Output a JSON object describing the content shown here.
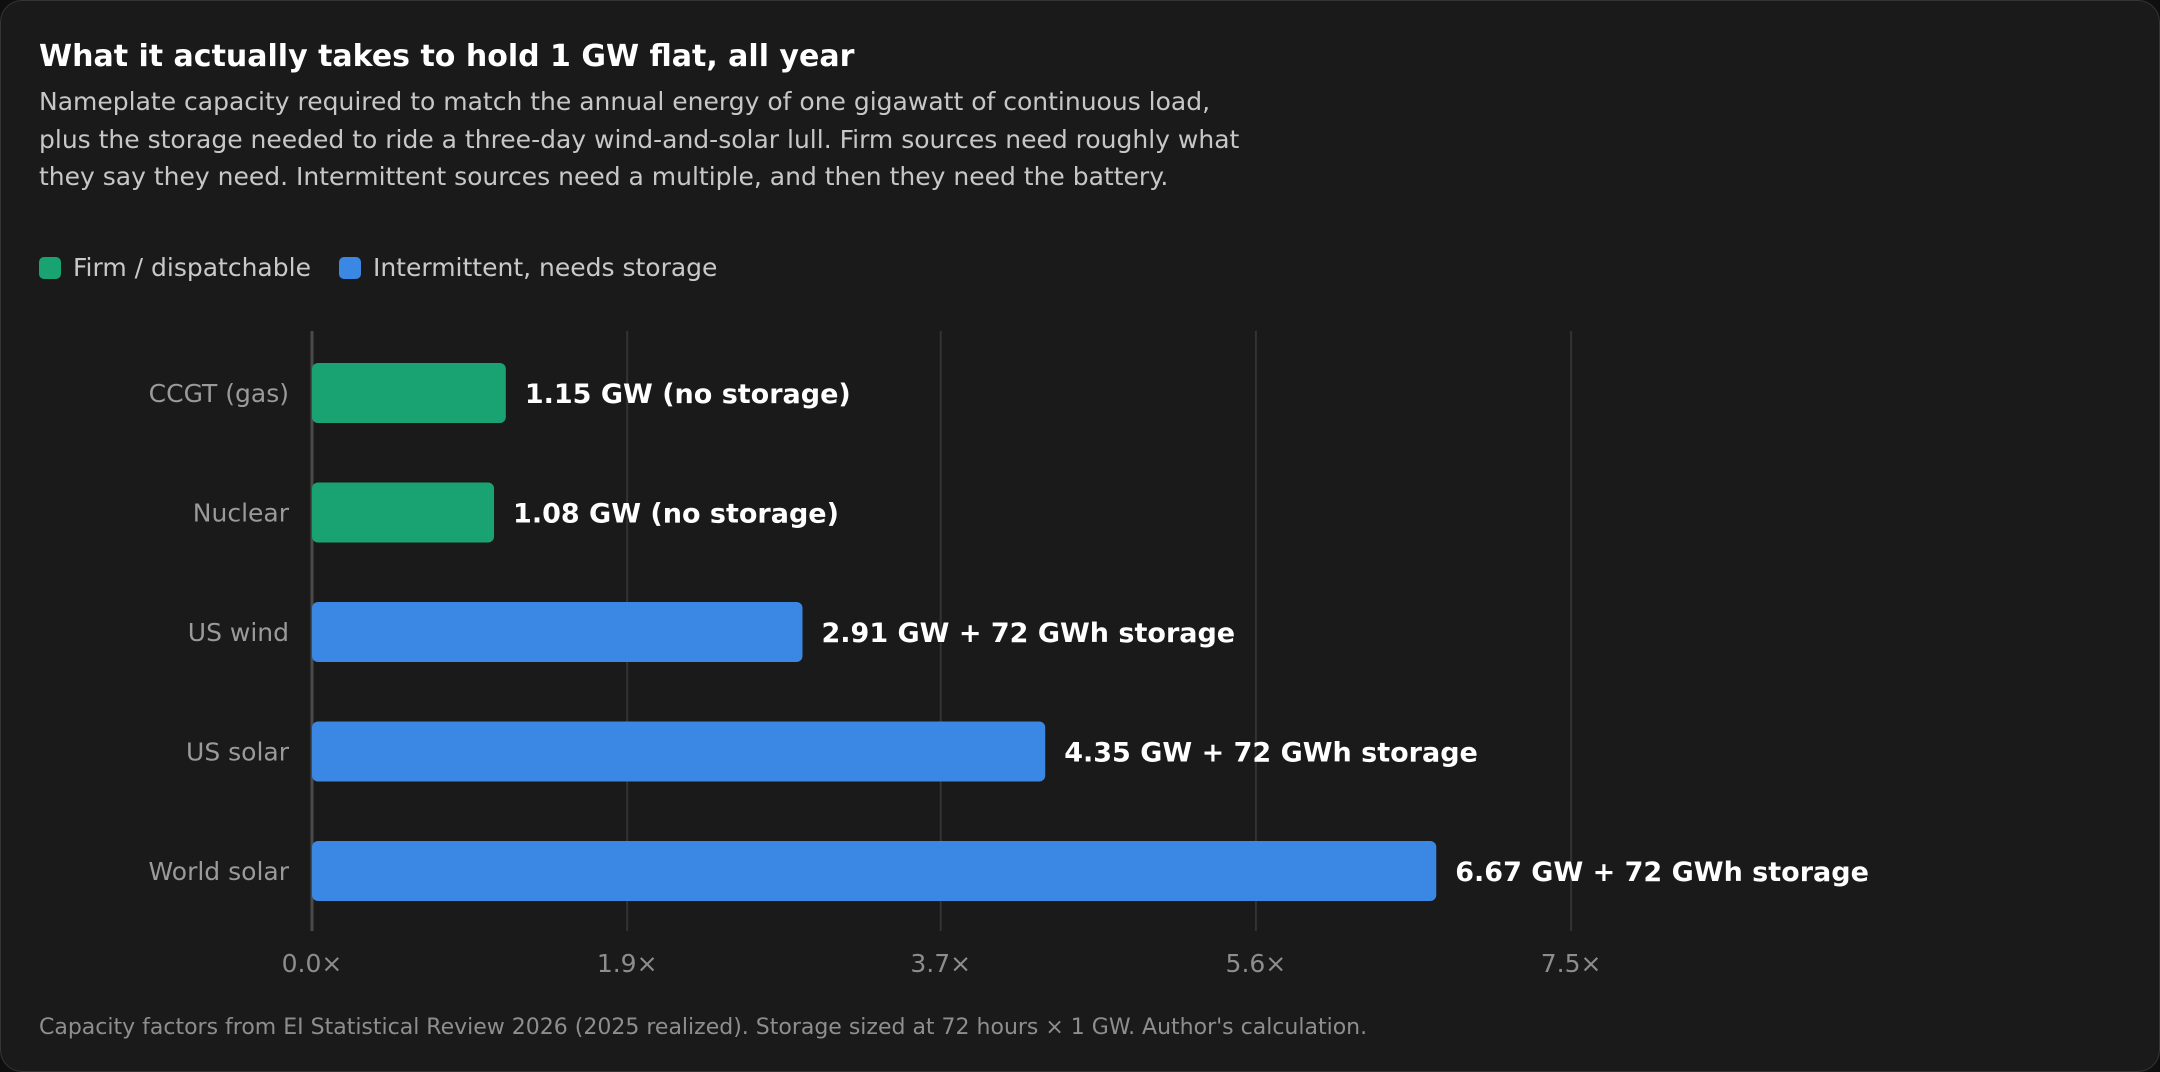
{
  "chart_data": {
    "type": "bar",
    "orientation": "horizontal",
    "title": "What it actually takes to hold 1 GW flat, all year",
    "subtitle": "Nameplate capacity required to match the annual energy of one gigawatt of continuous load, plus the storage needed to ride a three-day wind-and-solar lull. Firm sources need roughly what they say they need. Intermittent sources need a multiple, and then they need the battery.",
    "legend": [
      {
        "name": "Firm / dispatchable",
        "color": "#1aa372"
      },
      {
        "name": "Intermittent, needs storage",
        "color": "#3a87e4"
      }
    ],
    "legend_placement": "top-left",
    "categories": [
      "CCGT (gas)",
      "Nuclear",
      "US wind",
      "US solar",
      "World solar"
    ],
    "values": [
      1.15,
      1.08,
      2.91,
      4.35,
      6.67
    ],
    "groups": [
      "Firm / dispatchable",
      "Firm / dispatchable",
      "Intermittent, needs storage",
      "Intermittent, needs storage",
      "Intermittent, needs storage"
    ],
    "data_labels": [
      "1.15 GW (no storage)",
      "1.08 GW (no storage)",
      "2.91 GW + 72 GWh storage",
      "4.35 GW + 72 GWh storage",
      "6.67 GW + 72 GWh storage"
    ],
    "xlim": [
      0,
      9.7
    ],
    "xticks": [
      0,
      1.87,
      3.73,
      5.6,
      7.47
    ],
    "xtick_labels": [
      "0.0×",
      "1.9×",
      "3.7×",
      "5.6×",
      "7.5×"
    ],
    "xlabel": "",
    "ylabel": "",
    "grid": "vertical",
    "footnote": "Capacity factors from EI Statistical Review 2026 (2025 realized). Storage sized at 72 hours × 1 GW. Author's calculation."
  },
  "colors": {
    "background": "#1a1a1a",
    "gridline": "#333333",
    "axis": "#4a4a4a"
  }
}
